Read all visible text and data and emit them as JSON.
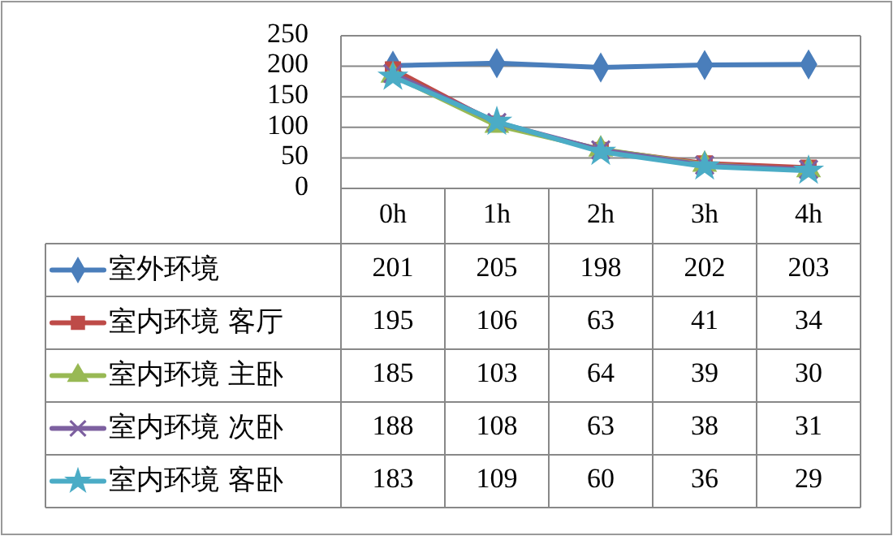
{
  "chart_data": {
    "type": "line",
    "categories": [
      "0h",
      "1h",
      "2h",
      "3h",
      "4h"
    ],
    "ylim": [
      0,
      250
    ],
    "yticks": [
      0,
      50,
      100,
      150,
      200,
      250
    ],
    "grid": "y",
    "legend": "bottom",
    "data_labels": true,
    "line_style": "solid",
    "series": [
      {
        "name": "室外环境",
        "color": "#4a7ebb",
        "marker": "diamond",
        "values": [
          201,
          205,
          198,
          202,
          203
        ]
      },
      {
        "name": "室内环境 客厅",
        "color": "#be4b48",
        "marker": "square",
        "values": [
          195,
          106,
          63,
          41,
          34
        ]
      },
      {
        "name": "室内环境 主卧",
        "color": "#98b954",
        "marker": "triangle",
        "values": [
          185,
          103,
          64,
          39,
          30
        ]
      },
      {
        "name": "室内环境 次卧",
        "color": "#7d60a0",
        "marker": "cross",
        "values": [
          188,
          108,
          63,
          38,
          31
        ]
      },
      {
        "name": "室内环境 客卧",
        "color": "#4bacc6",
        "marker": "star",
        "values": [
          183,
          109,
          60,
          36,
          29
        ]
      }
    ]
  }
}
